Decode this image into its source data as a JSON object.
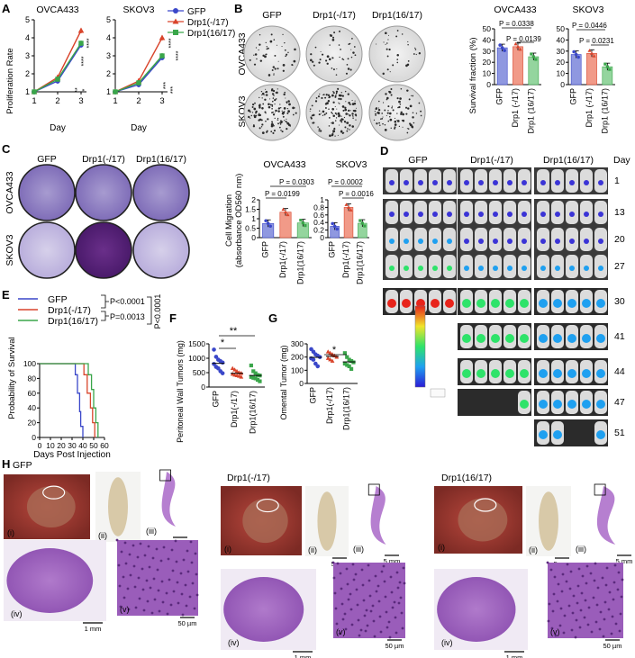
{
  "panels": {
    "A": {
      "letter": "A",
      "legend": [
        "GFP",
        "Drp1(-/17)",
        "Drp1(16/17)"
      ],
      "ylabel": "Proliferation Rate",
      "xlabel": "Day",
      "sig_ovca": [
        "****",
        "****",
        "**",
        "*"
      ],
      "sig_skov": [
        "****",
        "****",
        "***",
        "***"
      ]
    },
    "B": {
      "letter": "B",
      "col_labels": [
        "GFP",
        "Drp1(-/17)",
        "Drp1(16/17)"
      ],
      "row_labels": [
        "OVCA433",
        "SKOV3"
      ],
      "ylabel": "Survival fraction (%)",
      "p_ovca": [
        "P = 0.0338",
        "P = 0.0139"
      ],
      "p_skov": [
        "P = 0.0446",
        "P = 0.0231"
      ]
    },
    "C": {
      "letter": "C",
      "col_labels": [
        "GFP",
        "Drp1(-/17)",
        "Drp1(16/17)"
      ],
      "row_labels": [
        "OVCA433",
        "SKOV3"
      ],
      "ylabel_1": "Cell Migration",
      "ylabel_2": "(absorbance OD560 nm)",
      "p_ovca": [
        "P = 0.0303",
        "P = 0.0199"
      ],
      "p_skov": [
        "P = 0.0002",
        "P = 0.0016"
      ]
    },
    "D": {
      "letter": "D",
      "col_labels": [
        "GFP",
        "Drp1(-/17)",
        "Drp1(16/17)"
      ],
      "day_header": "Day",
      "days": [
        "1",
        "13",
        "20",
        "27",
        "30",
        "41",
        "44",
        "47",
        "51"
      ]
    },
    "E": {
      "letter": "E",
      "legend": [
        "GFP",
        "Drp1(-/17)",
        "Drp1(16/17)"
      ],
      "p_values": [
        "P<0.0001",
        "P=0.0013",
        "P<0.0001"
      ],
      "ylabel": "Probability of Survival",
      "xlabel": "Days Post Injection"
    },
    "F": {
      "letter": "F",
      "ylabel": "Peritoneal Wall Tumors (mg)",
      "sig": [
        "*",
        "**"
      ]
    },
    "G": {
      "letter": "G",
      "ylabel": "Omental Tumor (mg)",
      "sig": [
        "*"
      ]
    },
    "H": {
      "letter": "H",
      "groups": [
        "GFP",
        "Drp1(-/17)",
        "Drp1(16/17)"
      ],
      "subpanels": [
        "(i)",
        "(ii)",
        "(iii)",
        "(iv)",
        "(v)"
      ],
      "scale_5mm": "5 mm",
      "scale_1mm": "1 mm",
      "scale_50um": "50 µm"
    }
  },
  "chart_data": [
    {
      "type": "line",
      "title": "OVCA433",
      "xlabel": "Day",
      "ylabel": "Proliferation Rate",
      "x": [
        1,
        2,
        3
      ],
      "ylim": [
        1,
        5
      ],
      "series": [
        {
          "name": "GFP",
          "color": "#3a47c9",
          "values": [
            1.0,
            1.6,
            3.6
          ]
        },
        {
          "name": "Drp1(-/17)",
          "color": "#d9442b",
          "values": [
            1.0,
            1.8,
            4.4
          ]
        },
        {
          "name": "Drp1(16/17)",
          "color": "#3aa64a",
          "values": [
            1.0,
            1.7,
            3.7
          ]
        }
      ]
    },
    {
      "type": "line",
      "title": "SKOV3",
      "xlabel": "Day",
      "x": [
        1,
        2,
        3
      ],
      "ylim": [
        1,
        5
      ],
      "series": [
        {
          "name": "GFP",
          "color": "#3a47c9",
          "values": [
            1.0,
            1.4,
            2.9
          ]
        },
        {
          "name": "Drp1(-/17)",
          "color": "#d9442b",
          "values": [
            1.0,
            1.6,
            4.0
          ]
        },
        {
          "name": "Drp1(16/17)",
          "color": "#3aa64a",
          "values": [
            1.0,
            1.5,
            3.0
          ]
        }
      ]
    },
    {
      "type": "bar",
      "title": "OVCA433",
      "ylabel": "Survival fraction (%)",
      "categories": [
        "GFP",
        "Drp1 (-/17)",
        "Drp1 (16/17)"
      ],
      "values": [
        33,
        34,
        25
      ],
      "ylim": [
        0,
        50
      ],
      "yticks": [
        0,
        10,
        20,
        30,
        40,
        50
      ]
    },
    {
      "type": "bar",
      "title": "SKOV3",
      "categories": [
        "GFP",
        "Drp1 (-/17)",
        "Drp1 (16/17)"
      ],
      "values": [
        27,
        28,
        16
      ],
      "ylim": [
        0,
        50
      ],
      "yticks": [
        0,
        10,
        20,
        30,
        40,
        50
      ]
    },
    {
      "type": "bar",
      "title": "OVCA433",
      "ylabel": "Cell Migration (absorbance OD560 nm)",
      "categories": [
        "GFP",
        "Drp1(-/17)",
        "Drp1(16/17)"
      ],
      "values": [
        0.75,
        1.35,
        0.78
      ],
      "ylim": [
        0,
        2.0
      ],
      "yticks": [
        0,
        0.5,
        1.0,
        1.5,
        2.0
      ]
    },
    {
      "type": "bar",
      "title": "SKOV3",
      "categories": [
        "GFP",
        "Drp1(-/17)",
        "Drp1(16/17)"
      ],
      "values": [
        0.3,
        0.8,
        0.38
      ],
      "ylim": [
        0,
        1.0
      ],
      "yticks": [
        0,
        0.2,
        0.4,
        0.6,
        0.8,
        1.0
      ]
    },
    {
      "type": "line",
      "title": "",
      "ylabel": "Probability of Survival",
      "xlabel": "Days Post Injection",
      "xlim": [
        0,
        60
      ],
      "ylim": [
        0,
        100
      ],
      "xticks": [
        0,
        10,
        20,
        30,
        40,
        50,
        60
      ],
      "yticks": [
        0,
        20,
        40,
        60,
        80,
        100
      ],
      "series": [
        {
          "name": "GFP",
          "color": "#3a47c9",
          "steps": [
            [
              0,
              100
            ],
            [
              33,
              100
            ],
            [
              33,
              85
            ],
            [
              35,
              60
            ],
            [
              37,
              35
            ],
            [
              38,
              15
            ],
            [
              40,
              0
            ]
          ]
        },
        {
          "name": "Drp1(-/17)",
          "color": "#d9442b",
          "steps": [
            [
              0,
              100
            ],
            [
              41,
              100
            ],
            [
              41,
              85
            ],
            [
              44,
              60
            ],
            [
              47,
              40
            ],
            [
              49,
              20
            ],
            [
              51,
              0
            ]
          ]
        },
        {
          "name": "Drp1(16/17)",
          "color": "#3aa64a",
          "steps": [
            [
              0,
              100
            ],
            [
              45,
              100
            ],
            [
              45,
              85
            ],
            [
              48,
              65
            ],
            [
              50,
              40
            ],
            [
              52,
              20
            ],
            [
              54,
              0
            ]
          ]
        }
      ]
    },
    {
      "type": "scatter",
      "ylabel": "Peritoneal Wall Tumors (mg)",
      "categories": [
        "GFP",
        "Drp1(-/17)",
        "Drp1(16/17)"
      ],
      "ylim": [
        0,
        1500
      ],
      "yticks": [
        0,
        500,
        1000,
        1500
      ],
      "series": [
        {
          "name": "GFP",
          "color": "#3a47c9",
          "values": [
            1300,
            1050,
            950,
            900,
            850,
            800,
            700,
            650,
            550,
            480
          ]
        },
        {
          "name": "Drp1(-/17)",
          "color": "#d9442b",
          "values": [
            650,
            600,
            550,
            500,
            480,
            450,
            420,
            400,
            380,
            350
          ]
        },
        {
          "name": "Drp1(16/17)",
          "color": "#3aa64a",
          "values": [
            750,
            550,
            480,
            420,
            400,
            350,
            320,
            300,
            250,
            200
          ]
        }
      ]
    },
    {
      "type": "scatter",
      "ylabel": "Omental Tumor (mg)",
      "categories": [
        "GFP",
        "Drp1(-/17)",
        "Drp1(16/17)"
      ],
      "ylim": [
        0,
        300
      ],
      "yticks": [
        0,
        100,
        200,
        300
      ],
      "series": [
        {
          "name": "GFP",
          "color": "#3a47c9",
          "values": [
            260,
            240,
            220,
            210,
            200,
            190,
            180,
            150,
            130
          ]
        },
        {
          "name": "Drp1(-/17)",
          "color": "#d9442b",
          "values": [
            240,
            230,
            220,
            210,
            200,
            190,
            180,
            170
          ]
        },
        {
          "name": "Drp1(16/17)",
          "color": "#3aa64a",
          "values": [
            230,
            200,
            180,
            170,
            160,
            150,
            140,
            130,
            110
          ]
        }
      ]
    }
  ]
}
